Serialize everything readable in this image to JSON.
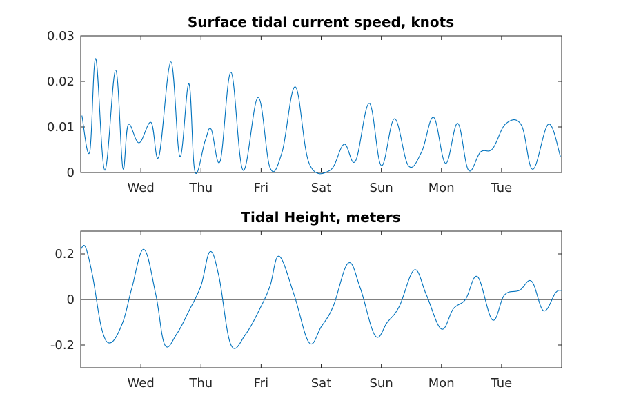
{
  "colors": {
    "series": "#0072bd",
    "axes": "#262626"
  },
  "chart_data": [
    {
      "type": "line",
      "title": "Surface tidal current speed, knots",
      "xlabel": "",
      "ylabel": "",
      "xlim": [
        -1,
        7
      ],
      "ylim": [
        0,
        0.03
      ],
      "yticks": [
        0,
        0.01,
        0.02,
        0.03
      ],
      "ytick_labels": [
        "0",
        "0.01",
        "0.02",
        "0.03"
      ],
      "xticks": [
        0,
        1,
        2,
        3,
        4,
        5,
        6
      ],
      "xtick_labels": [
        "Wed",
        "Thu",
        "Fri",
        "Sat",
        "Sun",
        "Mon",
        "Tue"
      ],
      "grid": false,
      "legend": "none",
      "series": [
        {
          "x": [
            -0.98,
            -0.85,
            -0.75,
            -0.6,
            -0.42,
            -0.3,
            -0.21,
            -0.03,
            0.17,
            0.3,
            0.5,
            0.65,
            0.8,
            0.9,
            1.07,
            1.17,
            1.32,
            1.5,
            1.7,
            1.95,
            2.15,
            2.35,
            2.57,
            2.8,
            3.15,
            3.38,
            3.57,
            3.8,
            4.0,
            4.22,
            4.45,
            4.67,
            4.87,
            5.07,
            5.27,
            5.45,
            5.65,
            5.85,
            6.07,
            6.33,
            6.52,
            6.78,
            6.98
          ],
          "y": [
            0.0125,
            0.0045,
            0.025,
            0.0005,
            0.0225,
            0.001,
            0.0105,
            0.0065,
            0.011,
            0.0035,
            0.0243,
            0.0035,
            0.0195,
            0.0002,
            0.007,
            0.0095,
            0.0025,
            0.022,
            0.0005,
            0.0165,
            0.001,
            0.0045,
            0.0188,
            0.002,
            0.0005,
            0.0062,
            0.0025,
            0.0152,
            0.0015,
            0.0118,
            0.0015,
            0.0045,
            0.0121,
            0.002,
            0.0108,
            0.0005,
            0.0045,
            0.0052,
            0.0107,
            0.0104,
            0.0007,
            0.0106,
            0.0035
          ]
        }
      ]
    },
    {
      "type": "line",
      "title": "Tidal Height, meters",
      "xlabel": "",
      "ylabel": "",
      "xlim": [
        -1,
        7
      ],
      "ylim": [
        -0.3,
        0.3
      ],
      "yticks": [
        -0.2,
        0,
        0.2
      ],
      "ytick_labels": [
        "-0.2",
        "0",
        "0.2"
      ],
      "xticks": [
        0,
        1,
        2,
        3,
        4,
        5,
        6
      ],
      "xtick_labels": [
        "Wed",
        "Thu",
        "Fri",
        "Sat",
        "Sun",
        "Mon",
        "Tue"
      ],
      "grid": false,
      "legend": "none",
      "zero_line": true,
      "series": [
        {
          "x": [
            -1,
            -0.92,
            -0.8,
            -0.65,
            -0.5,
            -0.3,
            -0.15,
            0.05,
            0.25,
            0.4,
            0.6,
            0.8,
            1.0,
            1.15,
            1.3,
            1.5,
            1.75,
            2.0,
            2.15,
            2.3,
            2.55,
            2.8,
            3.0,
            3.2,
            3.45,
            3.65,
            3.9,
            4.1,
            4.3,
            4.55,
            4.75,
            5.0,
            5.2,
            5.4,
            5.6,
            5.85,
            6.05,
            6.3,
            6.5,
            6.7,
            6.9,
            7.0
          ],
          "y": [
            0.22,
            0.23,
            0.1,
            -0.13,
            -0.19,
            -0.1,
            0.05,
            0.22,
            0.02,
            -0.2,
            -0.15,
            -0.05,
            0.06,
            0.21,
            0.1,
            -0.2,
            -0.15,
            -0.03,
            0.06,
            0.19,
            0.02,
            -0.19,
            -0.12,
            -0.03,
            0.16,
            0.05,
            -0.16,
            -0.1,
            -0.03,
            0.13,
            0.02,
            -0.13,
            -0.04,
            0.0,
            0.1,
            -0.09,
            0.02,
            0.04,
            0.08,
            -0.05,
            0.03,
            0.04
          ]
        }
      ]
    }
  ]
}
